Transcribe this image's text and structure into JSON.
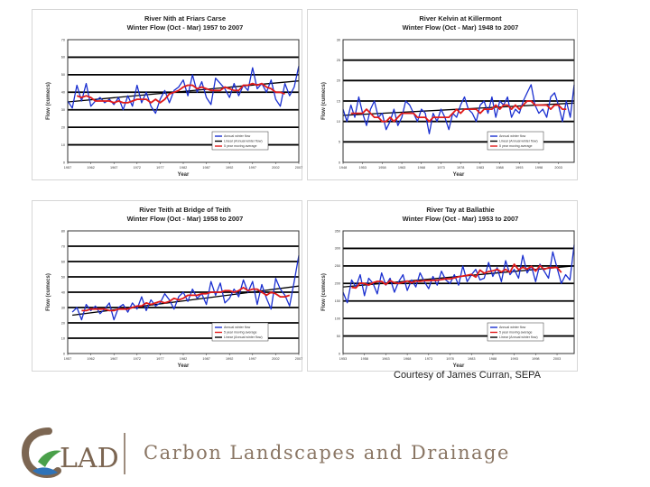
{
  "credit": "Courtesy of James Curran, SEPA",
  "logo": {
    "mark_text": "LAD",
    "name": "Carbon Landscapes and Drainage",
    "colors": {
      "brown": "#7c6652",
      "green": "#4aa04a",
      "blue": "#2f73b8"
    }
  },
  "colors": {
    "annual": "#1a2fd0",
    "moving_avg": "#e01a1a",
    "trend": "#000000"
  },
  "chart_data": [
    {
      "type": "line",
      "title": "River Nith at Friars Carse",
      "subtitle": "Winter Flow (Oct - Mar) 1957 to 2007",
      "xlabel": "Year",
      "ylabel": "Flow (cumecs)",
      "xlim": [
        1957,
        2007
      ],
      "ylim": [
        0,
        70
      ],
      "xticks": [
        "1957",
        "1962",
        "1967",
        "1972",
        "1977",
        "1982",
        "1987",
        "1992",
        "1997",
        "2002",
        "2007"
      ],
      "yticks": [
        0,
        10,
        20,
        30,
        40,
        50,
        60,
        70
      ],
      "legend": [
        "Annual winter flow",
        "Linear (Annual winter flow)",
        "5 year moving average"
      ],
      "legend_position": "bottom-right",
      "grid": "horizontal",
      "x": [
        1957,
        1958,
        1959,
        1960,
        1961,
        1962,
        1963,
        1964,
        1965,
        1966,
        1967,
        1968,
        1969,
        1970,
        1971,
        1972,
        1973,
        1974,
        1975,
        1976,
        1977,
        1978,
        1979,
        1980,
        1981,
        1982,
        1983,
        1984,
        1985,
        1986,
        1987,
        1988,
        1989,
        1990,
        1991,
        1992,
        1993,
        1994,
        1995,
        1996,
        1997,
        1998,
        1999,
        2000,
        2001,
        2002,
        2003,
        2004,
        2005,
        2006,
        2007
      ],
      "series": [
        {
          "values": [
            35,
            31,
            44,
            35,
            45,
            32,
            35,
            37,
            34,
            36,
            33,
            37,
            30,
            38,
            32,
            44,
            34,
            40,
            32,
            28,
            36,
            41,
            34,
            41,
            43,
            47,
            38,
            50,
            40,
            46,
            37,
            33,
            48,
            45,
            42,
            37,
            45,
            38,
            44,
            41,
            54,
            42,
            45,
            40,
            47,
            36,
            32,
            45,
            38,
            43,
            55
          ]
        },
        {
          "values": [
            null,
            null,
            38,
            37,
            38,
            37,
            35,
            35,
            35,
            35,
            34,
            35,
            34,
            34,
            35,
            36,
            36,
            36,
            34,
            36,
            34,
            36,
            39,
            40,
            41,
            43,
            44,
            44,
            42,
            43,
            42,
            41,
            41,
            41,
            43,
            42,
            41,
            41,
            44,
            44,
            45,
            44,
            45,
            43,
            42,
            40,
            40,
            39,
            null,
            null,
            null
          ]
        },
        {
          "values": [
            34.5,
            null,
            null,
            null,
            null,
            null,
            null,
            null,
            null,
            null,
            null,
            null,
            null,
            null,
            null,
            null,
            null,
            null,
            null,
            null,
            null,
            null,
            null,
            null,
            null,
            null,
            null,
            null,
            null,
            null,
            null,
            null,
            null,
            null,
            null,
            null,
            null,
            null,
            null,
            null,
            null,
            null,
            null,
            null,
            null,
            null,
            null,
            null,
            null,
            null,
            46.5
          ]
        }
      ]
    },
    {
      "type": "line",
      "title": "River Kelvin at Killermont",
      "subtitle": "Winter Flow (Oct - Mar) 1948 to 2007",
      "xlabel": "Year",
      "ylabel": "Flow (cumecs)",
      "xlim": [
        1948,
        2007
      ],
      "ylim": [
        0,
        30
      ],
      "xticks": [
        "1948",
        "1953",
        "1958",
        "1963",
        "1968",
        "1973",
        "1978",
        "1983",
        "1988",
        "1993",
        "1998",
        "2003"
      ],
      "yticks": [
        0,
        5,
        10,
        15,
        20,
        25,
        30
      ],
      "legend": [
        "Annual winter flow",
        "Linear (Annual winter flow)",
        "5 year moving average"
      ],
      "legend_position": "bottom-right",
      "grid": "horizontal",
      "x": [
        1948,
        1949,
        1950,
        1951,
        1952,
        1953,
        1954,
        1955,
        1956,
        1957,
        1958,
        1959,
        1960,
        1961,
        1962,
        1963,
        1964,
        1965,
        1966,
        1967,
        1968,
        1969,
        1970,
        1971,
        1972,
        1973,
        1974,
        1975,
        1976,
        1977,
        1978,
        1979,
        1980,
        1981,
        1982,
        1983,
        1984,
        1985,
        1986,
        1987,
        1988,
        1989,
        1990,
        1991,
        1992,
        1993,
        1994,
        1995,
        1996,
        1997,
        1998,
        1999,
        2000,
        2001,
        2002,
        2003,
        2004,
        2005,
        2006,
        2007
      ],
      "series": [
        {
          "values": [
            13,
            10,
            14,
            11,
            16,
            12,
            9,
            13,
            15,
            11,
            12,
            8,
            10,
            13,
            9,
            11,
            15,
            14,
            12,
            10,
            13,
            12,
            7,
            12,
            10,
            13,
            11,
            8,
            12,
            11,
            14,
            16,
            13,
            12,
            10,
            14,
            15,
            12,
            16,
            11,
            15,
            14,
            16,
            11,
            13,
            12,
            15,
            17,
            19,
            14,
            12,
            13,
            11,
            16,
            17,
            14,
            10,
            15,
            11,
            19
          ]
        },
        {
          "values": [
            null,
            null,
            12,
            12,
            12,
            12,
            13,
            12,
            11,
            11,
            10,
            10,
            11,
            10,
            11,
            12,
            12,
            12,
            12,
            11,
            11,
            11,
            10,
            11,
            11,
            11,
            11,
            11,
            12,
            13,
            12,
            13,
            13,
            13,
            13,
            12,
            13,
            13,
            13,
            14,
            13,
            14,
            14,
            13,
            14,
            13,
            14,
            15,
            15,
            14,
            14,
            14,
            14,
            13,
            14,
            14,
            13,
            13,
            null,
            null
          ]
        },
        {
          "values": [
            11.5,
            null,
            null,
            null,
            null,
            null,
            null,
            null,
            null,
            null,
            null,
            null,
            null,
            null,
            null,
            null,
            null,
            null,
            null,
            null,
            null,
            null,
            null,
            null,
            null,
            null,
            null,
            null,
            null,
            null,
            null,
            null,
            null,
            null,
            null,
            null,
            null,
            null,
            null,
            null,
            null,
            null,
            null,
            null,
            null,
            null,
            null,
            null,
            null,
            null,
            null,
            null,
            null,
            null,
            null,
            null,
            null,
            null,
            null,
            14.5
          ]
        }
      ]
    },
    {
      "type": "line",
      "title": "River Teith at Bridge of Teith",
      "subtitle": "Winter Flow (Oct - Mar) 1958 to 2007",
      "xlabel": "Year",
      "ylabel": "Flow (cumecs)",
      "xlim": [
        1957,
        2007
      ],
      "ylim": [
        0,
        80
      ],
      "xticks": [
        "1957",
        "1962",
        "1967",
        "1972",
        "1977",
        "1982",
        "1987",
        "1992",
        "1997",
        "2002",
        "2007"
      ],
      "yticks": [
        0,
        10,
        20,
        30,
        40,
        50,
        60,
        70,
        80
      ],
      "legend": [
        "Annual winter flow",
        "5 year moving average",
        "Linear (Annual winter flow)"
      ],
      "legend_position": "bottom-right",
      "grid": "horizontal",
      "x": [
        1958,
        1959,
        1960,
        1961,
        1962,
        1963,
        1964,
        1965,
        1966,
        1967,
        1968,
        1969,
        1970,
        1971,
        1972,
        1973,
        1974,
        1975,
        1976,
        1977,
        1978,
        1979,
        1980,
        1981,
        1982,
        1983,
        1984,
        1985,
        1986,
        1987,
        1988,
        1989,
        1990,
        1991,
        1992,
        1993,
        1994,
        1995,
        1996,
        1997,
        1998,
        1999,
        2000,
        2001,
        2002,
        2003,
        2004,
        2005,
        2006,
        2007
      ],
      "series": [
        {
          "values": [
            27,
            30,
            22,
            32,
            28,
            31,
            26,
            29,
            33,
            22,
            30,
            32,
            27,
            33,
            29,
            37,
            28,
            35,
            31,
            33,
            39,
            35,
            29,
            37,
            40,
            34,
            42,
            36,
            39,
            32,
            47,
            38,
            46,
            33,
            36,
            42,
            37,
            48,
            40,
            47,
            32,
            45,
            36,
            29,
            49,
            42,
            38,
            31,
            47,
            64
          ]
        },
        {
          "values": [
            null,
            null,
            28,
            28,
            29,
            29,
            29,
            29,
            28,
            28,
            29,
            29,
            29,
            30,
            31,
            31,
            33,
            32,
            33,
            34,
            33,
            34,
            36,
            35,
            36,
            38,
            38,
            38,
            39,
            39,
            40,
            40,
            40,
            41,
            41,
            40,
            41,
            43,
            41,
            42,
            42,
            40,
            38,
            40,
            39,
            37,
            37,
            38,
            null,
            null
          ]
        },
        {
          "values": [
            25,
            null,
            null,
            null,
            null,
            null,
            null,
            null,
            null,
            null,
            null,
            null,
            null,
            null,
            null,
            null,
            null,
            null,
            null,
            null,
            null,
            null,
            null,
            null,
            null,
            null,
            null,
            null,
            null,
            null,
            null,
            null,
            null,
            null,
            null,
            null,
            null,
            null,
            null,
            null,
            null,
            null,
            null,
            null,
            null,
            null,
            null,
            null,
            null,
            44
          ]
        }
      ]
    },
    {
      "type": "line",
      "title": "River Tay at Ballathie",
      "subtitle": "Winter Flow (Oct - Mar) 1953 to 2007",
      "xlabel": "Year",
      "ylabel": "Flow (cumecs)",
      "xlim": [
        1953,
        2007
      ],
      "ylim": [
        0,
        350
      ],
      "xticks": [
        "1953",
        "1958",
        "1963",
        "1968",
        "1973",
        "1978",
        "1983",
        "1988",
        "1993",
        "1998",
        "2003"
      ],
      "yticks": [
        0,
        50,
        100,
        150,
        200,
        250,
        300,
        350
      ],
      "legend": [
        "Annual winter flow",
        "5 year moving average",
        "Linear (Annual winter flow)"
      ],
      "legend_position": "bottom-right",
      "grid": "horizontal",
      "x": [
        1953,
        1954,
        1955,
        1956,
        1957,
        1958,
        1959,
        1960,
        1961,
        1962,
        1963,
        1964,
        1965,
        1966,
        1967,
        1968,
        1969,
        1970,
        1971,
        1972,
        1973,
        1974,
        1975,
        1976,
        1977,
        1978,
        1979,
        1980,
        1981,
        1982,
        1983,
        1984,
        1985,
        1986,
        1987,
        1988,
        1989,
        1990,
        1991,
        1992,
        1993,
        1994,
        1995,
        1996,
        1997,
        1998,
        1999,
        2000,
        2001,
        2002,
        2003,
        2004,
        2005,
        2006,
        2007
      ],
      "series": [
        {
          "values": [
            175,
            145,
            210,
            190,
            225,
            165,
            215,
            200,
            170,
            230,
            195,
            215,
            175,
            205,
            225,
            180,
            210,
            190,
            230,
            205,
            185,
            220,
            195,
            235,
            210,
            200,
            225,
            195,
            250,
            205,
            225,
            240,
            210,
            215,
            260,
            220,
            245,
            205,
            265,
            225,
            240,
            215,
            280,
            230,
            250,
            205,
            255,
            235,
            215,
            290,
            245,
            200,
            225,
            210,
            310
          ]
        },
        {
          "values": [
            null,
            null,
            189,
            187,
            201,
            200,
            195,
            202,
            206,
            206,
            197,
            208,
            202,
            200,
            203,
            207,
            202,
            207,
            206,
            208,
            208,
            209,
            209,
            211,
            213,
            213,
            216,
            219,
            221,
            223,
            226,
            218,
            238,
            229,
            234,
            236,
            240,
            233,
            240,
            232,
            255,
            239,
            246,
            241,
            249,
            235,
            251,
            240,
            245,
            245,
            246,
            231,
            null,
            null,
            null
          ]
        },
        {
          "values": [
            190,
            null,
            null,
            null,
            null,
            null,
            null,
            null,
            null,
            null,
            null,
            null,
            null,
            null,
            null,
            null,
            null,
            null,
            null,
            null,
            null,
            null,
            null,
            null,
            null,
            null,
            null,
            null,
            null,
            null,
            null,
            null,
            null,
            null,
            null,
            null,
            null,
            null,
            null,
            null,
            null,
            null,
            null,
            null,
            null,
            null,
            null,
            null,
            null,
            null,
            null,
            null,
            null,
            null,
            250
          ]
        }
      ]
    }
  ]
}
